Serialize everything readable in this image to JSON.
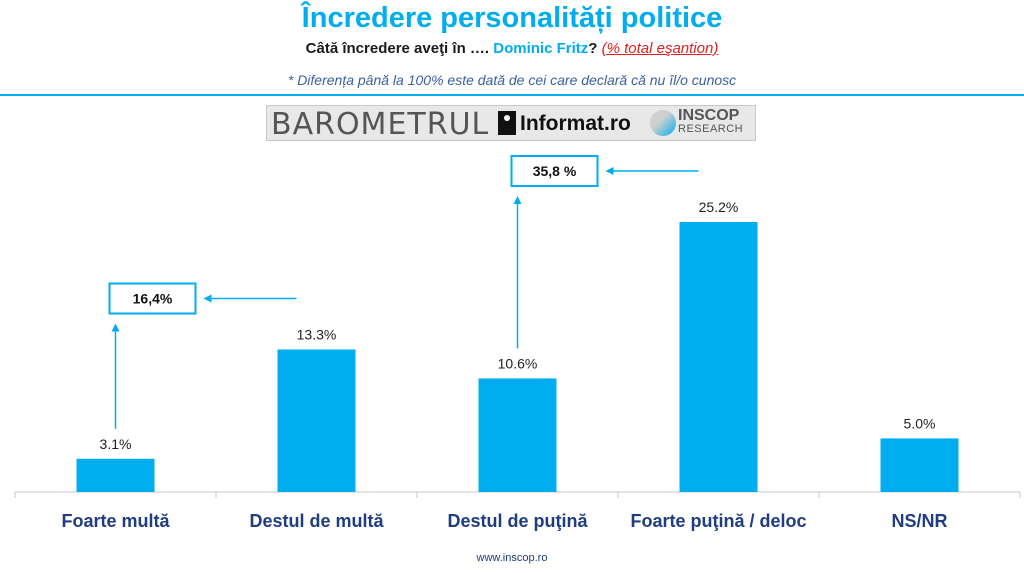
{
  "header": {
    "title": "Încredere personalități politice",
    "question_prefix": "Câtă încredere aveţi în ….",
    "question_name": "Dominic Fritz",
    "question_suffix": "?",
    "question_note": "(% total eşantion)",
    "footnote": "* Diferența până la 100% este dată de cei care declară că nu îl/o cunosc"
  },
  "logos": {
    "barometrul": "BAROMETRUL",
    "informat": "Informat.ro",
    "inscop": "INSCOP",
    "inscop_sub": "RESEARCH"
  },
  "footer": {
    "site": "www.inscop.ro"
  },
  "colors": {
    "bar": "#00aeef",
    "accent": "#00aeef",
    "category_text": "#1f3d80",
    "note": "#e02020"
  },
  "chart_data": {
    "type": "bar",
    "title": "",
    "xlabel": "",
    "ylabel": "",
    "categories": [
      "Foarte multă",
      "Destul de multă",
      "Destul de puţină",
      "Foarte puţină / deloc",
      "NS/NR"
    ],
    "values": [
      3.1,
      13.3,
      10.6,
      25.2,
      5.0
    ],
    "data_labels": [
      "3.1%",
      "13.3%",
      "10.6%",
      "25.2%",
      "5.0%"
    ],
    "ylim": [
      0,
      28
    ],
    "grid": false,
    "legend": "none",
    "annotations": [
      {
        "text": "16,4%",
        "from_category": 0,
        "to_category": 1
      },
      {
        "text": "35,8 %",
        "from_category": 2,
        "to_category": 3
      }
    ]
  }
}
